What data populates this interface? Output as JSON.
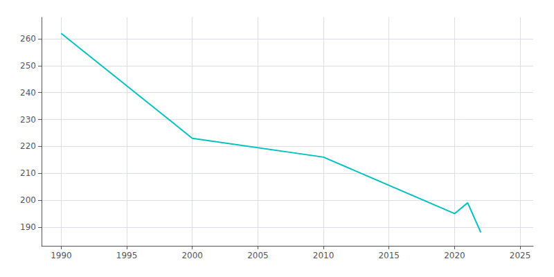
{
  "chart_data": {
    "type": "line",
    "x": [
      1990,
      2000,
      2010,
      2020,
      2021,
      2022
    ],
    "values": [
      262,
      223,
      216,
      195,
      199,
      188
    ],
    "color": "#00c0c0",
    "xlim": [
      1988.5,
      2026
    ],
    "ylim": [
      183,
      268
    ],
    "xticks": [
      1990,
      1995,
      2000,
      2005,
      2010,
      2015,
      2020,
      2025
    ],
    "yticks": [
      190,
      200,
      210,
      220,
      230,
      240,
      250,
      260
    ],
    "grid": true
  }
}
